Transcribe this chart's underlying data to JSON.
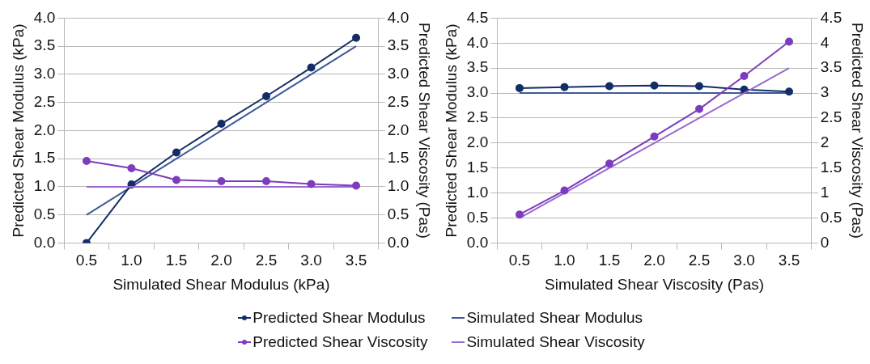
{
  "chart_data": [
    {
      "type": "line",
      "categories": [
        "0.5",
        "1.0",
        "1.5",
        "2.0",
        "2.5",
        "3.0",
        "3.5"
      ],
      "xlabel": "Simulated Shear Modulus (kPa)",
      "ylabel": "Predicted Shear Modulus (kPa)",
      "y2label": "Predicted Shear Viscosity (Pas)",
      "ylim": [
        0,
        4
      ],
      "yticks": [
        {
          "value": 0,
          "label": "0.0"
        },
        0.5,
        {
          "value": 1,
          "label": "1.0"
        },
        1.5,
        {
          "value": 2,
          "label": "2.0"
        },
        2.5,
        {
          "value": 3,
          "label": "3.0"
        },
        3.5,
        {
          "value": 4,
          "label": "4.0"
        }
      ],
      "y2lim": [
        0,
        4
      ],
      "y2ticks": [
        {
          "value": 0,
          "label": "0.0"
        },
        0.5,
        {
          "value": 1,
          "label": "1.0"
        },
        1.5,
        {
          "value": 2,
          "label": "2.0"
        },
        2.5,
        {
          "value": 3,
          "label": "3.0"
        },
        3.5,
        {
          "value": 4,
          "label": "4.0"
        }
      ],
      "grid": "y",
      "legend": "bottom",
      "line_style": "solid",
      "series": [
        {
          "name": "Predicted Shear Modulus",
          "color": "#142d66",
          "marker": "circle",
          "values": [
            0.0,
            1.04,
            1.61,
            2.12,
            2.61,
            3.12,
            3.65
          ]
        },
        {
          "name": "Simulated Shear Modulus",
          "color": "#3d5a99",
          "marker": "none",
          "values": [
            0.5,
            1.0,
            1.5,
            2.0,
            2.5,
            3.0,
            3.5
          ]
        },
        {
          "name": "Predicted Shear Viscosity",
          "color": "#7d3cbd",
          "marker": "circle",
          "axis": "y2",
          "values": [
            1.46,
            1.33,
            1.12,
            1.1,
            1.1,
            1.05,
            1.02
          ]
        },
        {
          "name": "Simulated Shear Viscosity",
          "color": "#9a6ad0",
          "marker": "none",
          "axis": "y2",
          "values": [
            1.0,
            1.0,
            1.0,
            1.0,
            1.0,
            1.0,
            1.0
          ]
        }
      ]
    },
    {
      "type": "line",
      "categories": [
        "0.5",
        "1.0",
        "1.5",
        "2.0",
        "2.5",
        "3.0",
        "3.5"
      ],
      "xlabel": "Simulated Shear Viscosity (Pas)",
      "ylabel": "Predicted Shear Modulus (kPa)",
      "y2label": "Predicted Shear Viscosity (Pas)",
      "ylim": [
        0,
        4.5
      ],
      "yticks": [
        {
          "value": 0,
          "label": "0.0"
        },
        0.5,
        {
          "value": 1,
          "label": "1.0"
        },
        1.5,
        {
          "value": 2,
          "label": "2.0"
        },
        2.5,
        {
          "value": 3,
          "label": "3.0"
        },
        3.5,
        {
          "value": 4,
          "label": "4.0"
        },
        4.5
      ],
      "y2lim": [
        0,
        4.5
      ],
      "y2ticks": [
        0,
        0.5,
        1,
        1.5,
        2,
        2.5,
        3,
        3.5,
        4,
        4.5
      ],
      "grid": "y",
      "line_style": "solid",
      "series": [
        {
          "color": "#142d66",
          "marker": "circle",
          "values": [
            3.1,
            3.12,
            3.14,
            3.15,
            3.14,
            3.07,
            3.03
          ]
        },
        {
          "color": "#3d5a99",
          "marker": "none",
          "values": [
            3.0,
            3.0,
            3.0,
            3.0,
            3.0,
            3.0,
            3.0
          ]
        },
        {
          "color": "#7d3cbd",
          "marker": "circle",
          "axis": "y2",
          "values": [
            0.57,
            1.05,
            1.59,
            2.13,
            2.68,
            3.34,
            4.03
          ]
        },
        {
          "color": "#9a6ad0",
          "marker": "none",
          "axis": "y2",
          "values": [
            0.5,
            1.0,
            1.5,
            2.0,
            2.5,
            3.0,
            3.5
          ]
        }
      ]
    }
  ]
}
